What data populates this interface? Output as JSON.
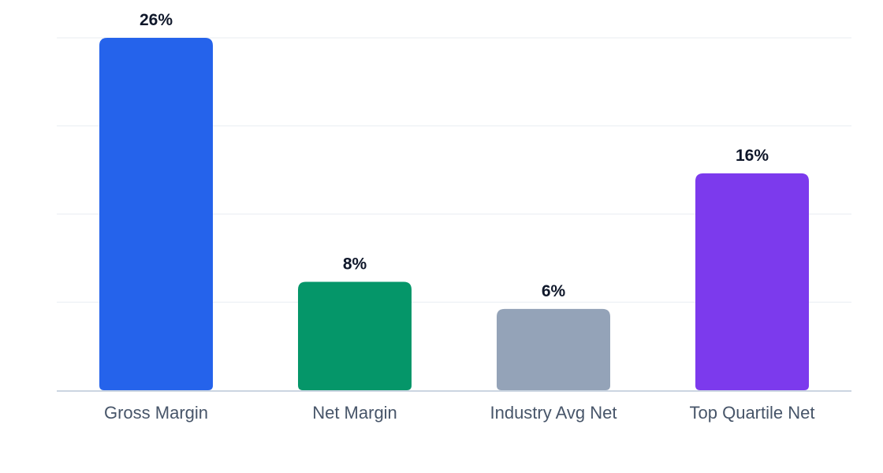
{
  "chart_data": {
    "type": "bar",
    "title": "",
    "xlabel": "",
    "ylabel": "",
    "categories": [
      "Gross Margin",
      "Net Margin",
      "Industry Avg Net",
      "Top Quartile Net"
    ],
    "values": [
      26,
      8,
      6,
      16
    ],
    "value_labels": [
      "26%",
      "8%",
      "6%",
      "16%"
    ],
    "unit": "%",
    "ylim": [
      0,
      26
    ],
    "grid": true,
    "legend": "none",
    "bar_colors": [
      "#2563eb",
      "#059669",
      "#94a3b8",
      "#7c3aed"
    ],
    "gridline_color": "#e9edf2",
    "baseline_color": "#cbd5e1"
  }
}
